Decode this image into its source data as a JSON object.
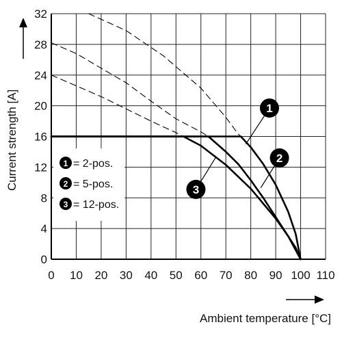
{
  "chart_data": {
    "type": "line",
    "title": "",
    "xlabel": "Ambient temperature [°C]",
    "ylabel": "Current strength [A]",
    "xlim": [
      0,
      110
    ],
    "ylim": [
      0,
      32
    ],
    "x_ticks": [
      "0",
      "10",
      "20",
      "30",
      "40",
      "50",
      "60",
      "70",
      "80",
      "90",
      "100",
      "110"
    ],
    "y_ticks": [
      "0",
      "4",
      "8",
      "12",
      "16",
      "20",
      "24",
      "28",
      "32"
    ],
    "grid": true,
    "legend_position": "left",
    "legend": [
      {
        "marker": "1",
        "label": "= 2-pos."
      },
      {
        "marker": "2",
        "label": "= 5-pos."
      },
      {
        "marker": "3",
        "label": "= 12-pos."
      }
    ],
    "series": [
      {
        "marker": "1",
        "style": "solid",
        "points": [
          [
            0,
            16
          ],
          [
            76,
            16
          ],
          [
            80,
            14.6
          ],
          [
            85,
            12.4
          ],
          [
            90,
            9.7
          ],
          [
            95,
            6.2
          ],
          [
            98,
            3.3
          ],
          [
            100,
            0
          ]
        ]
      },
      {
        "marker": "2",
        "style": "solid",
        "points": [
          [
            0,
            16
          ],
          [
            63,
            16
          ],
          [
            70,
            14
          ],
          [
            75,
            12.4
          ],
          [
            80,
            10.3
          ],
          [
            85,
            8
          ],
          [
            90,
            5.5
          ],
          [
            95,
            3
          ],
          [
            98,
            1.5
          ],
          [
            100,
            0
          ]
        ]
      },
      {
        "marker": "3",
        "style": "solid",
        "points": [
          [
            0,
            16
          ],
          [
            53,
            16
          ],
          [
            60,
            14.8
          ],
          [
            70,
            12.3
          ],
          [
            80,
            9.2
          ],
          [
            90,
            5.3
          ],
          [
            95,
            3
          ],
          [
            100,
            0
          ]
        ]
      },
      {
        "marker": "1",
        "style": "dashed",
        "points": [
          [
            15,
            32
          ],
          [
            30,
            29.8
          ],
          [
            45,
            26.5
          ],
          [
            60,
            22.3
          ],
          [
            70,
            18.5
          ],
          [
            75,
            16.3
          ],
          [
            76,
            16
          ]
        ]
      },
      {
        "marker": "2",
        "style": "dashed",
        "points": [
          [
            0,
            28.2
          ],
          [
            10,
            26.8
          ],
          [
            20,
            24.9
          ],
          [
            30,
            23
          ],
          [
            40,
            20.6
          ],
          [
            50,
            18.3
          ],
          [
            60,
            16.6
          ],
          [
            63,
            16
          ]
        ]
      },
      {
        "marker": "3",
        "style": "dashed",
        "points": [
          [
            0,
            24
          ],
          [
            10,
            22.6
          ],
          [
            20,
            21.2
          ],
          [
            30,
            19.6
          ],
          [
            40,
            18
          ],
          [
            50,
            16.5
          ],
          [
            53,
            16
          ]
        ]
      }
    ],
    "badges": [
      {
        "label": "1",
        "x": 87.5,
        "y": 19.7,
        "target": [
          78,
          15
        ]
      },
      {
        "label": "2",
        "x": 91.5,
        "y": 13.2,
        "target": [
          84,
          9.3
        ]
      },
      {
        "label": "3",
        "x": 58,
        "y": 9.1,
        "target": [
          66,
          13.3
        ]
      }
    ],
    "colors": {
      "line": "#000000",
      "grid": "#222222",
      "badge": "#000000",
      "badge_text": "#ffffff"
    }
  }
}
